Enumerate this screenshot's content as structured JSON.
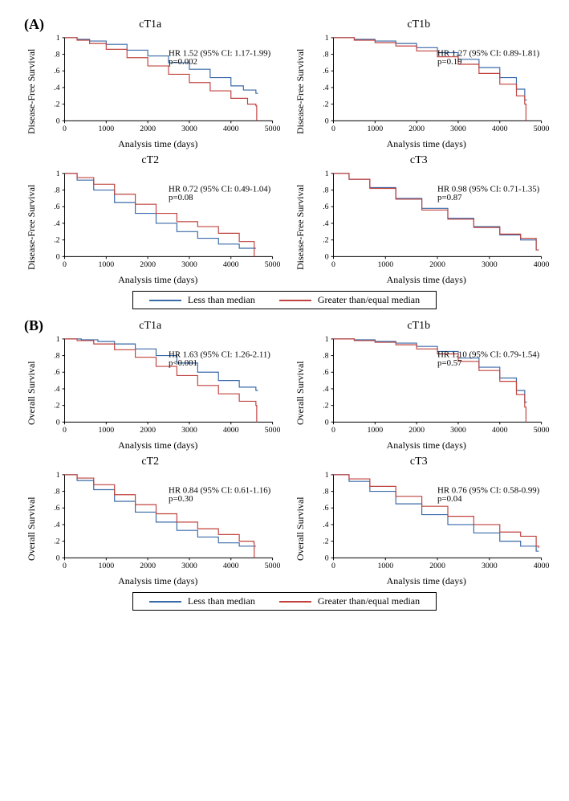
{
  "colors": {
    "series1": "#3a6aa8",
    "series2": "#c0433f",
    "axis": "#000000",
    "bg": "#ffffff"
  },
  "legend": {
    "item1": "Less than median",
    "item2": "Greater than/equal median"
  },
  "axis": {
    "x_label": "Analysis time (days)",
    "y_label_A": "Disease-Free Survival",
    "y_label_B": "Overall Survival",
    "y_ticks": [
      0,
      0.2,
      0.4,
      0.6,
      0.8,
      1
    ]
  },
  "sections": {
    "A": {
      "label": "(A)",
      "panels": [
        {
          "title": "cT1a",
          "hr_line1": "HR 1.52 (95% CI: 1.17-1.99)",
          "hr_line2": "p=0.002",
          "x_max": 5000,
          "x_ticks": [
            0,
            1000,
            2000,
            3000,
            4000,
            5000
          ],
          "series1": [
            [
              0,
              1.0
            ],
            [
              300,
              0.98
            ],
            [
              600,
              0.96
            ],
            [
              1000,
              0.92
            ],
            [
              1500,
              0.85
            ],
            [
              2000,
              0.78
            ],
            [
              2500,
              0.7
            ],
            [
              3000,
              0.62
            ],
            [
              3500,
              0.52
            ],
            [
              4000,
              0.42
            ],
            [
              4300,
              0.37
            ],
            [
              4600,
              0.33
            ],
            [
              4650,
              0.33
            ]
          ],
          "series2": [
            [
              0,
              1.0
            ],
            [
              300,
              0.97
            ],
            [
              600,
              0.93
            ],
            [
              1000,
              0.86
            ],
            [
              1500,
              0.76
            ],
            [
              2000,
              0.66
            ],
            [
              2500,
              0.56
            ],
            [
              3000,
              0.46
            ],
            [
              3500,
              0.36
            ],
            [
              4000,
              0.27
            ],
            [
              4400,
              0.2
            ],
            [
              4600,
              0.18
            ],
            [
              4620,
              0.0
            ]
          ]
        },
        {
          "title": "cT1b",
          "hr_line1": "HR 1.27 (95% CI: 0.89-1.81)",
          "hr_line2": "p=0.19",
          "x_max": 5000,
          "x_ticks": [
            0,
            1000,
            2000,
            3000,
            4000,
            5000
          ],
          "series1": [
            [
              0,
              1.0
            ],
            [
              500,
              0.98
            ],
            [
              1000,
              0.96
            ],
            [
              1500,
              0.93
            ],
            [
              2000,
              0.88
            ],
            [
              2500,
              0.82
            ],
            [
              3000,
              0.74
            ],
            [
              3500,
              0.64
            ],
            [
              4000,
              0.52
            ],
            [
              4400,
              0.38
            ],
            [
              4600,
              0.25
            ],
            [
              4650,
              0.25
            ]
          ],
          "series2": [
            [
              0,
              1.0
            ],
            [
              500,
              0.97
            ],
            [
              1000,
              0.94
            ],
            [
              1500,
              0.9
            ],
            [
              2000,
              0.84
            ],
            [
              2500,
              0.77
            ],
            [
              3000,
              0.68
            ],
            [
              3500,
              0.57
            ],
            [
              4000,
              0.44
            ],
            [
              4400,
              0.3
            ],
            [
              4600,
              0.2
            ],
            [
              4620,
              0.2
            ],
            [
              4630,
              0.0
            ]
          ]
        },
        {
          "title": "cT2",
          "hr_line1": "HR 0.72 (95% CI: 0.49-1.04)",
          "hr_line2": "p=0.08",
          "x_max": 5000,
          "x_ticks": [
            0,
            1000,
            2000,
            3000,
            4000,
            5000
          ],
          "series1": [
            [
              0,
              1.0
            ],
            [
              300,
              0.92
            ],
            [
              700,
              0.8
            ],
            [
              1200,
              0.65
            ],
            [
              1700,
              0.52
            ],
            [
              2200,
              0.4
            ],
            [
              2700,
              0.3
            ],
            [
              3200,
              0.22
            ],
            [
              3700,
              0.15
            ],
            [
              4200,
              0.1
            ],
            [
              4600,
              0.1
            ]
          ],
          "series2": [
            [
              0,
              1.0
            ],
            [
              300,
              0.95
            ],
            [
              700,
              0.87
            ],
            [
              1200,
              0.75
            ],
            [
              1700,
              0.63
            ],
            [
              2200,
              0.52
            ],
            [
              2700,
              0.42
            ],
            [
              3200,
              0.36
            ],
            [
              3700,
              0.28
            ],
            [
              4200,
              0.18
            ],
            [
              4550,
              0.18
            ],
            [
              4560,
              0.0
            ]
          ]
        },
        {
          "title": "cT3",
          "hr_line1": "HR 0.98 (95% CI: 0.71-1.35)",
          "hr_line2": "p=0.87",
          "x_max": 4000,
          "x_ticks": [
            0,
            1000,
            2000,
            3000,
            4000
          ],
          "series1": [
            [
              0,
              1.0
            ],
            [
              300,
              0.93
            ],
            [
              700,
              0.83
            ],
            [
              1200,
              0.7
            ],
            [
              1700,
              0.58
            ],
            [
              2200,
              0.46
            ],
            [
              2700,
              0.36
            ],
            [
              3200,
              0.26
            ],
            [
              3600,
              0.2
            ],
            [
              3900,
              0.08
            ],
            [
              3950,
              0.08
            ]
          ],
          "series2": [
            [
              0,
              1.0
            ],
            [
              300,
              0.93
            ],
            [
              700,
              0.82
            ],
            [
              1200,
              0.69
            ],
            [
              1700,
              0.56
            ],
            [
              2200,
              0.45
            ],
            [
              2700,
              0.35
            ],
            [
              3200,
              0.27
            ],
            [
              3600,
              0.22
            ],
            [
              3900,
              0.08
            ],
            [
              3950,
              0.08
            ]
          ]
        }
      ]
    },
    "B": {
      "label": "(B)",
      "panels": [
        {
          "title": "cT1a",
          "hr_line1": "HR 1.63 (95% CI: 1.26-2.11)",
          "hr_line2": "p<0.001",
          "x_max": 5000,
          "x_ticks": [
            0,
            1000,
            2000,
            3000,
            4000,
            5000
          ],
          "series1": [
            [
              0,
              1.0
            ],
            [
              400,
              0.99
            ],
            [
              800,
              0.97
            ],
            [
              1200,
              0.94
            ],
            [
              1700,
              0.88
            ],
            [
              2200,
              0.8
            ],
            [
              2700,
              0.71
            ],
            [
              3200,
              0.6
            ],
            [
              3700,
              0.5
            ],
            [
              4200,
              0.42
            ],
            [
              4600,
              0.38
            ],
            [
              4650,
              0.38
            ]
          ],
          "series2": [
            [
              0,
              1.0
            ],
            [
              300,
              0.98
            ],
            [
              700,
              0.94
            ],
            [
              1200,
              0.87
            ],
            [
              1700,
              0.78
            ],
            [
              2200,
              0.67
            ],
            [
              2700,
              0.56
            ],
            [
              3200,
              0.44
            ],
            [
              3700,
              0.34
            ],
            [
              4200,
              0.25
            ],
            [
              4600,
              0.2
            ],
            [
              4620,
              0.0
            ]
          ]
        },
        {
          "title": "cT1b",
          "hr_line1": "HR 1.10 (95% CI: 0.79-1.54)",
          "hr_line2": "p=0.57",
          "x_max": 5000,
          "x_ticks": [
            0,
            1000,
            2000,
            3000,
            4000,
            5000
          ],
          "series1": [
            [
              0,
              1.0
            ],
            [
              500,
              0.99
            ],
            [
              1000,
              0.97
            ],
            [
              1500,
              0.95
            ],
            [
              2000,
              0.91
            ],
            [
              2500,
              0.85
            ],
            [
              3000,
              0.77
            ],
            [
              3500,
              0.66
            ],
            [
              4000,
              0.53
            ],
            [
              4400,
              0.38
            ],
            [
              4600,
              0.24
            ],
            [
              4650,
              0.24
            ]
          ],
          "series2": [
            [
              0,
              1.0
            ],
            [
              500,
              0.98
            ],
            [
              1000,
              0.96
            ],
            [
              1500,
              0.93
            ],
            [
              2000,
              0.88
            ],
            [
              2500,
              0.82
            ],
            [
              3000,
              0.73
            ],
            [
              3500,
              0.62
            ],
            [
              4000,
              0.49
            ],
            [
              4400,
              0.33
            ],
            [
              4600,
              0.18
            ],
            [
              4630,
              0.0
            ]
          ]
        },
        {
          "title": "cT2",
          "hr_line1": "HR 0.84 (95% CI: 0.61-1.16)",
          "hr_line2": "p=0.30",
          "x_max": 5000,
          "x_ticks": [
            0,
            1000,
            2000,
            3000,
            4000,
            5000
          ],
          "series1": [
            [
              0,
              1.0
            ],
            [
              300,
              0.93
            ],
            [
              700,
              0.82
            ],
            [
              1200,
              0.68
            ],
            [
              1700,
              0.55
            ],
            [
              2200,
              0.43
            ],
            [
              2700,
              0.33
            ],
            [
              3200,
              0.25
            ],
            [
              3700,
              0.18
            ],
            [
              4200,
              0.14
            ],
            [
              4600,
              0.14
            ]
          ],
          "series2": [
            [
              0,
              1.0
            ],
            [
              300,
              0.96
            ],
            [
              700,
              0.88
            ],
            [
              1200,
              0.76
            ],
            [
              1700,
              0.64
            ],
            [
              2200,
              0.53
            ],
            [
              2700,
              0.43
            ],
            [
              3200,
              0.35
            ],
            [
              3700,
              0.28
            ],
            [
              4200,
              0.2
            ],
            [
              4550,
              0.18
            ],
            [
              4560,
              0.0
            ]
          ]
        },
        {
          "title": "cT3",
          "hr_line1": "HR 0.76 (95% CI: 0.58-0.99)",
          "hr_line2": "p=0.04",
          "x_max": 4000,
          "x_ticks": [
            0,
            1000,
            2000,
            3000,
            4000
          ],
          "series1": [
            [
              0,
              1.0
            ],
            [
              300,
              0.92
            ],
            [
              700,
              0.8
            ],
            [
              1200,
              0.65
            ],
            [
              1700,
              0.52
            ],
            [
              2200,
              0.4
            ],
            [
              2700,
              0.3
            ],
            [
              3200,
              0.2
            ],
            [
              3600,
              0.14
            ],
            [
              3900,
              0.08
            ],
            [
              3950,
              0.08
            ]
          ],
          "series2": [
            [
              0,
              1.0
            ],
            [
              300,
              0.95
            ],
            [
              700,
              0.86
            ],
            [
              1200,
              0.74
            ],
            [
              1700,
              0.62
            ],
            [
              2200,
              0.5
            ],
            [
              2700,
              0.4
            ],
            [
              3200,
              0.31
            ],
            [
              3600,
              0.26
            ],
            [
              3900,
              0.14
            ],
            [
              3950,
              0.12
            ]
          ]
        }
      ]
    }
  }
}
